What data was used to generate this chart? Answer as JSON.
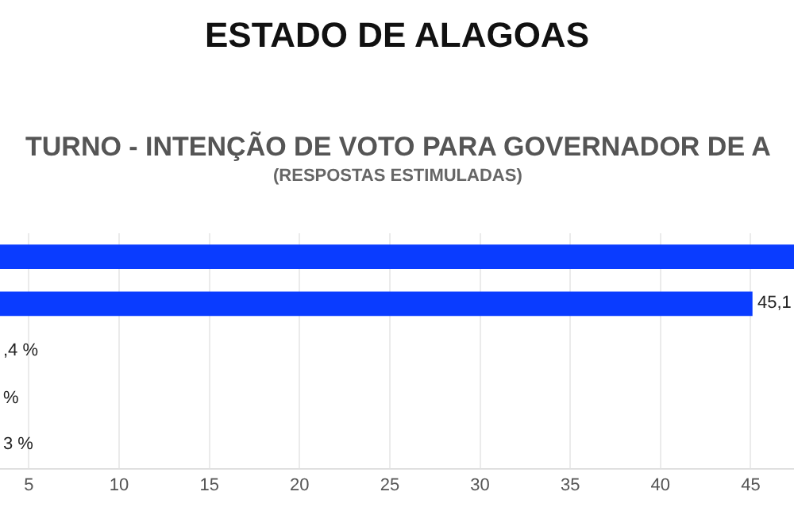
{
  "chart_data": {
    "type": "bar",
    "orientation": "horizontal",
    "title": "ESTADO DE ALAGOAS",
    "subtitle": "TURNO - INTENÇÃO DE VOTO PARA GOVERNADOR DE A",
    "annotations": [
      "(RESPOSTAS ESTIMULADAS)"
    ],
    "categories": [
      null,
      null,
      null,
      null,
      null
    ],
    "values": [
      47.4,
      45.1,
      null,
      null,
      null
    ],
    "value_labels": [
      null,
      "45,1",
      ",4 %",
      "%",
      "3 %"
    ],
    "color": "#0a3cff",
    "xlim": [
      3.4,
      47.4
    ],
    "xticks": [
      5,
      10,
      15,
      20,
      25,
      30,
      35,
      40,
      45
    ],
    "grid": "x",
    "tick_labels": "x",
    "legend": false
  }
}
